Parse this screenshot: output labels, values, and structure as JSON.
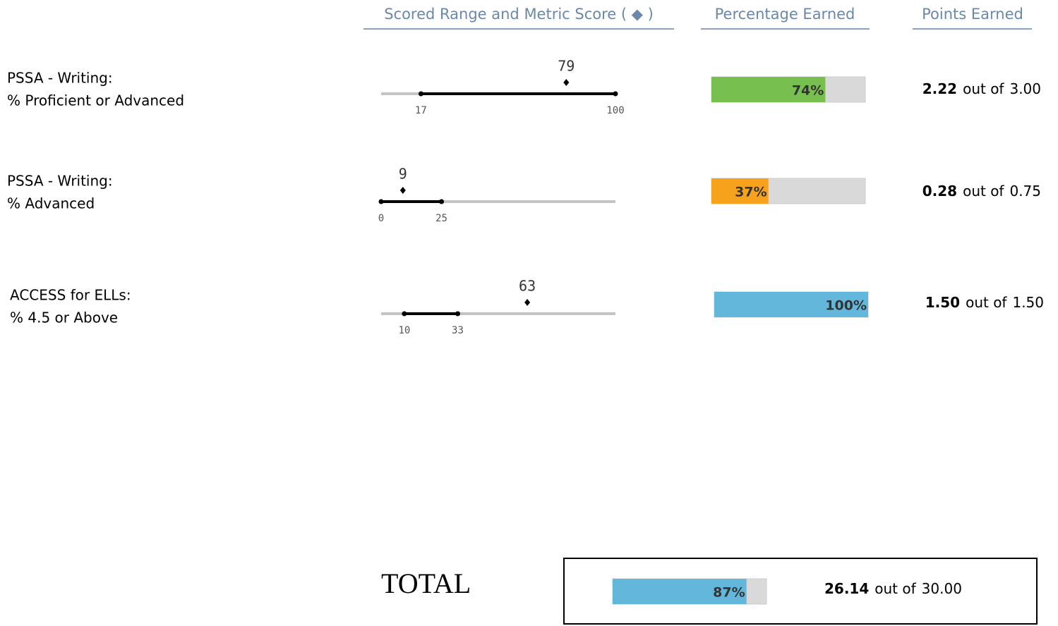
{
  "headers": [
    "Scored Range and Metric Score ( ◆ )",
    "Percentage Earned",
    "Points Earned"
  ],
  "rows": [
    {
      "label": [
        "PSSA - Writing:",
        "% Proficient or Advanced"
      ],
      "range": {
        "low": 17,
        "high": 100,
        "score": 79
      },
      "xlim": [
        0,
        100
      ],
      "percent": 74,
      "percent_label": "74%",
      "color": "#77c04f",
      "points": {
        "earned": "2.22",
        "text": "out of",
        "max": "3.00"
      }
    },
    {
      "label": [
        "PSSA - Writing:",
        "% Advanced"
      ],
      "range": {
        "low": 0,
        "high": 25,
        "score": 9
      },
      "xlim": [
        0,
        97
      ],
      "percent": 37,
      "percent_label": "37%",
      "color": "#f7a21d",
      "points": {
        "earned": "0.28",
        "text": "out of",
        "max": "0.75"
      }
    },
    {
      "label": [
        "ACCESS for ELLs:",
        "% 4.5 or Above"
      ],
      "range": {
        "low": 10,
        "high": 33,
        "score": 63
      },
      "xlim": [
        0,
        101
      ],
      "percent": 100,
      "percent_label": "100%",
      "color": "#62b7da",
      "points": {
        "earned": "1.50",
        "text": "out of",
        "max": "1.50"
      }
    }
  ],
  "total": {
    "label": "TOTAL",
    "percent": 87,
    "percent_label": "87%",
    "color": "#62b7da",
    "points": {
      "earned": "26.14",
      "text": "out of",
      "max": "30.00"
    }
  }
}
